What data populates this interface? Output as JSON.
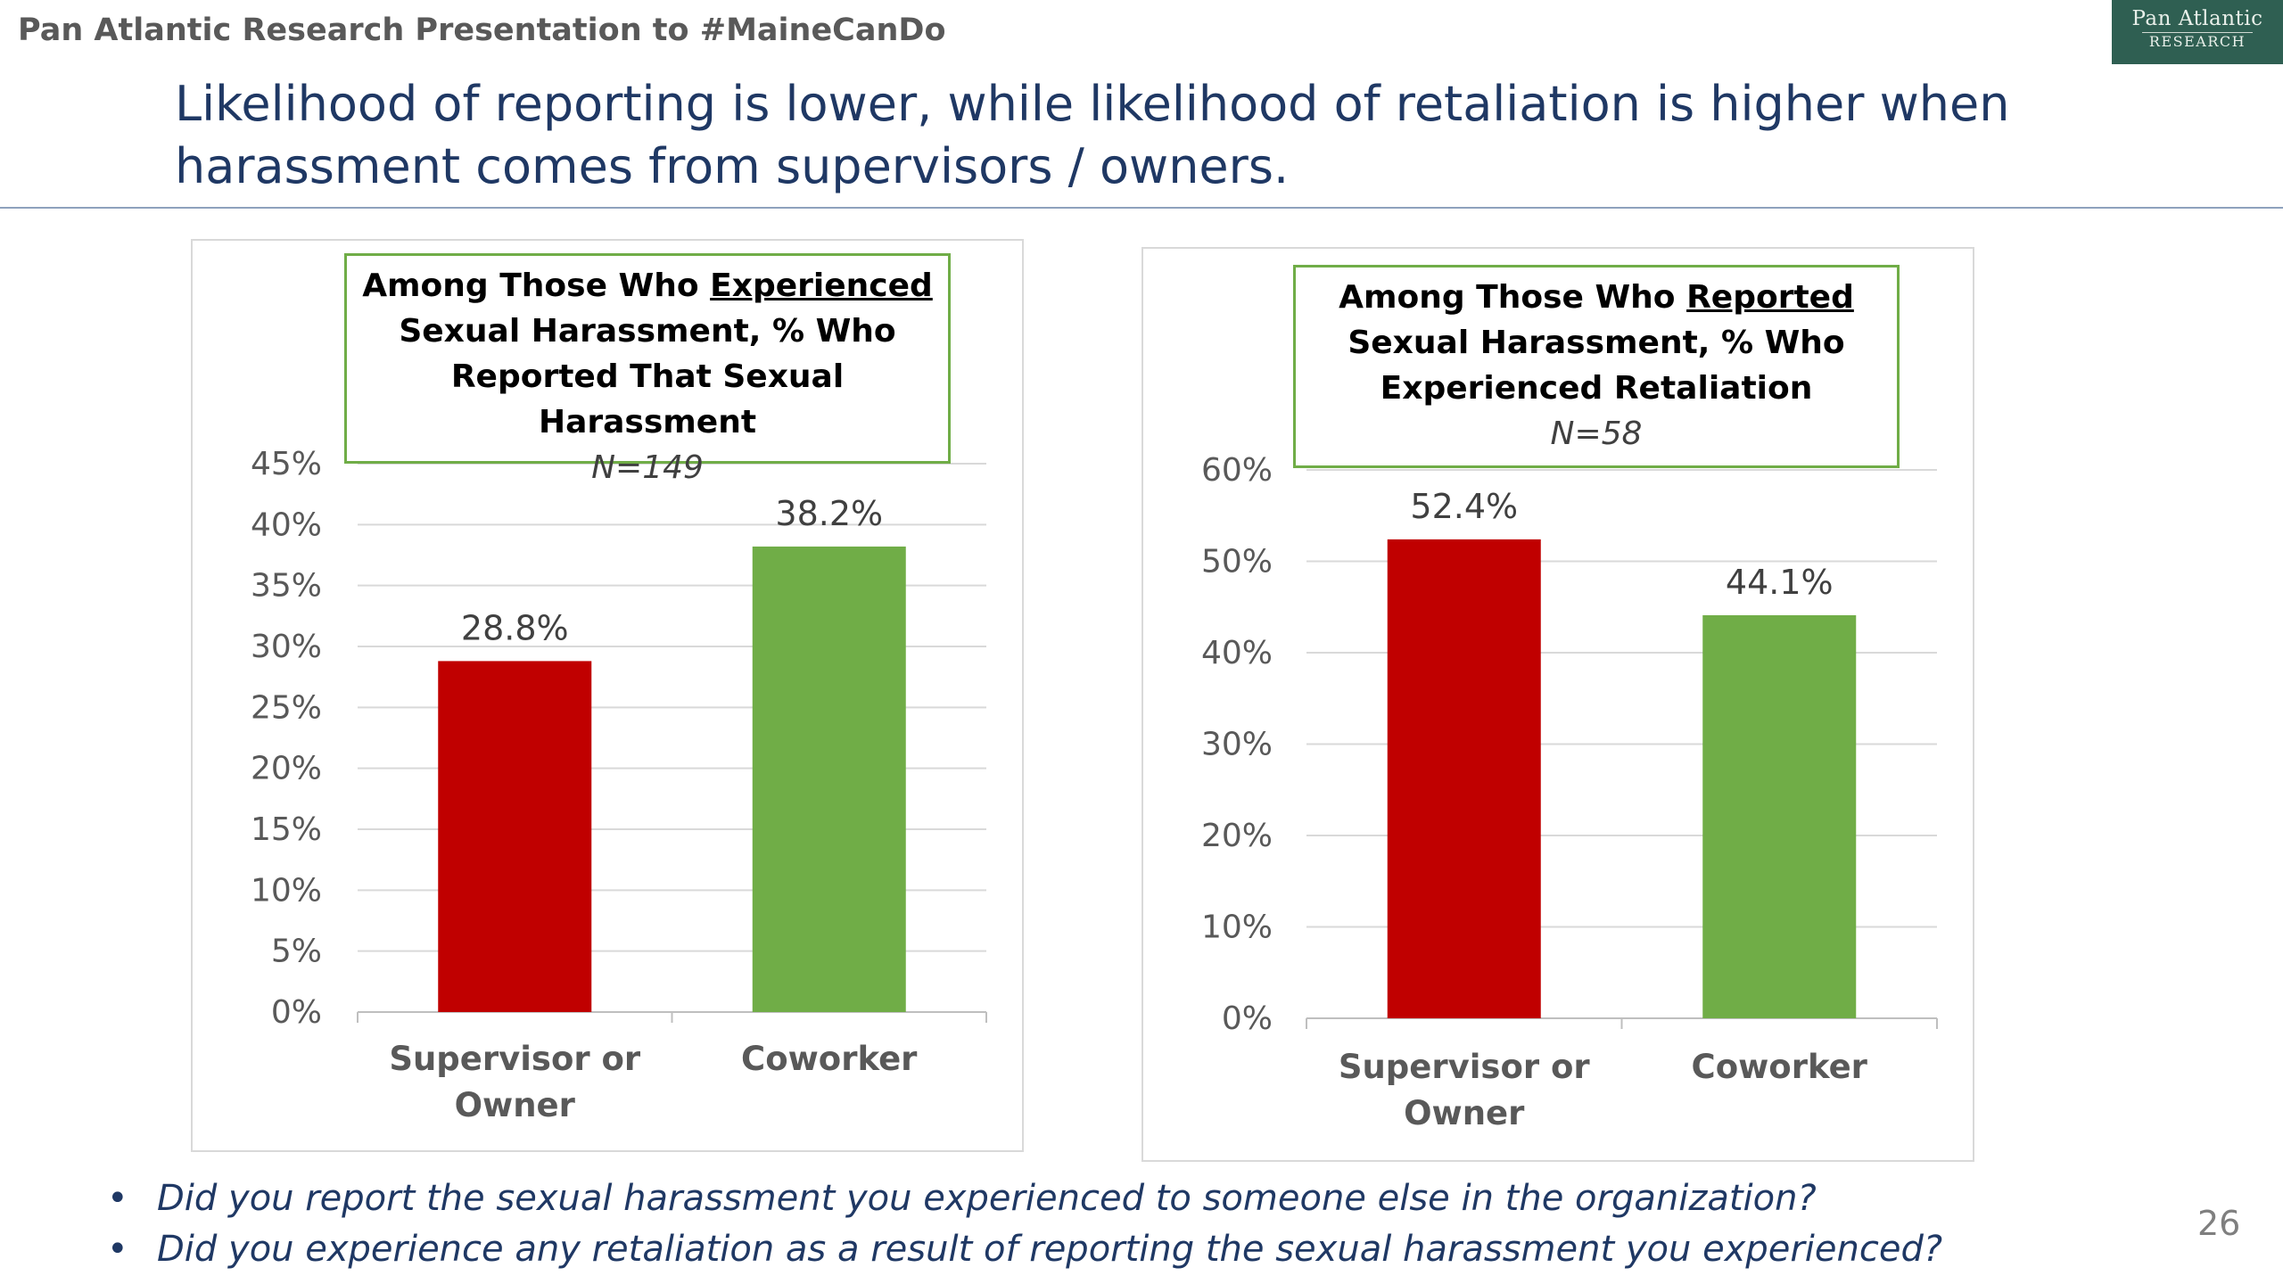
{
  "header": {
    "text": "Pan Atlantic Research Presentation to #MaineCanDo"
  },
  "logo": {
    "line1": "Pan Atlantic",
    "line2": "RESEARCH",
    "color": "#2f5f52"
  },
  "title": "Likelihood of reporting is lower, while  likelihood of retaliation is higher when harassment comes from supervisors / owners.",
  "bullets": [
    "Did you report the sexual harassment you experienced to someone else in the organization?",
    "Did you experience any retaliation as a result of reporting the sexual harassment you experienced?"
  ],
  "page_number": "26",
  "chart_data": [
    {
      "type": "bar",
      "caption": {
        "pre": "Among Those Who ",
        "underlined": "Experienced",
        "post": " Sexual Harassment, % Who Reported That Sexual Harassment",
        "n": "N=149"
      },
      "categories": [
        "Supervisor or Owner",
        "Coworker"
      ],
      "values": [
        28.8,
        38.2
      ],
      "value_labels": [
        "28.8%",
        "38.2%"
      ],
      "bar_colors": [
        "#c00000",
        "#70ad47"
      ],
      "ylim": [
        0,
        45
      ],
      "yticks": [
        "0%",
        "5%",
        "10%",
        "15%",
        "20%",
        "25%",
        "30%",
        "35%",
        "40%",
        "45%"
      ],
      "grid": true
    },
    {
      "type": "bar",
      "caption": {
        "pre": "Among Those Who ",
        "underlined": "Reported",
        "post": " Sexual Harassment, % Who Experienced Retaliation",
        "n": "N=58"
      },
      "categories": [
        "Supervisor or Owner",
        "Coworker"
      ],
      "values": [
        52.4,
        44.1
      ],
      "value_labels": [
        "52.4%",
        "44.1%"
      ],
      "bar_colors": [
        "#c00000",
        "#70ad47"
      ],
      "ylim": [
        0,
        60
      ],
      "yticks": [
        "0%",
        "10%",
        "20%",
        "30%",
        "40%",
        "50%",
        "60%"
      ],
      "grid": true
    }
  ]
}
